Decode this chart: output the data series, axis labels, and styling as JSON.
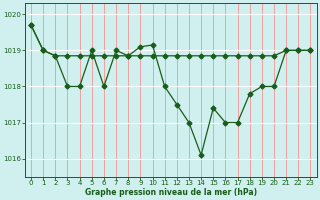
{
  "xlabel": "Graphe pression niveau de la mer (hPa)",
  "x_values": [
    0,
    1,
    2,
    3,
    4,
    5,
    6,
    7,
    8,
    9,
    10,
    11,
    12,
    13,
    14,
    15,
    16,
    17,
    18,
    19,
    20,
    21,
    22,
    23
  ],
  "line1_y": [
    1019.7,
    1019.0,
    1018.85,
    1018.0,
    1018.0,
    1019.0,
    1018.0,
    1019.0,
    1018.85,
    1019.1,
    1019.15,
    1018.0,
    1017.5,
    1017.0,
    1016.1,
    1017.4,
    1017.0,
    1017.0,
    1017.8,
    1018.0,
    1018.0,
    1019.0,
    1019.0,
    1019.0
  ],
  "line2_y": [
    1019.7,
    1019.0,
    1018.85,
    1018.85,
    1018.85,
    1018.85,
    1018.85,
    1018.85,
    1018.85,
    1018.85,
    1018.85,
    1018.85,
    1018.85,
    1018.85,
    1018.85,
    1018.85,
    1018.85,
    1018.85,
    1018.85,
    1018.85,
    1018.85,
    1019.0,
    1019.0,
    1019.0
  ],
  "line_color": "#1a5c1a",
  "bg_color": "#cff0ee",
  "vgrid_color": "#f0a0a0",
  "hgrid_color": "#ffffff",
  "ylim": [
    1015.5,
    1020.3
  ],
  "xlim": [
    -0.5,
    23.5
  ],
  "yticks": [
    1016,
    1017,
    1018,
    1019,
    1020
  ],
  "xticks": [
    0,
    1,
    2,
    3,
    4,
    5,
    6,
    7,
    8,
    9,
    10,
    11,
    12,
    13,
    14,
    15,
    16,
    17,
    18,
    19,
    20,
    21,
    22,
    23
  ],
  "xlabel_fontsize": 5.5,
  "tick_fontsize": 5,
  "xlabel_fontweight": "bold"
}
